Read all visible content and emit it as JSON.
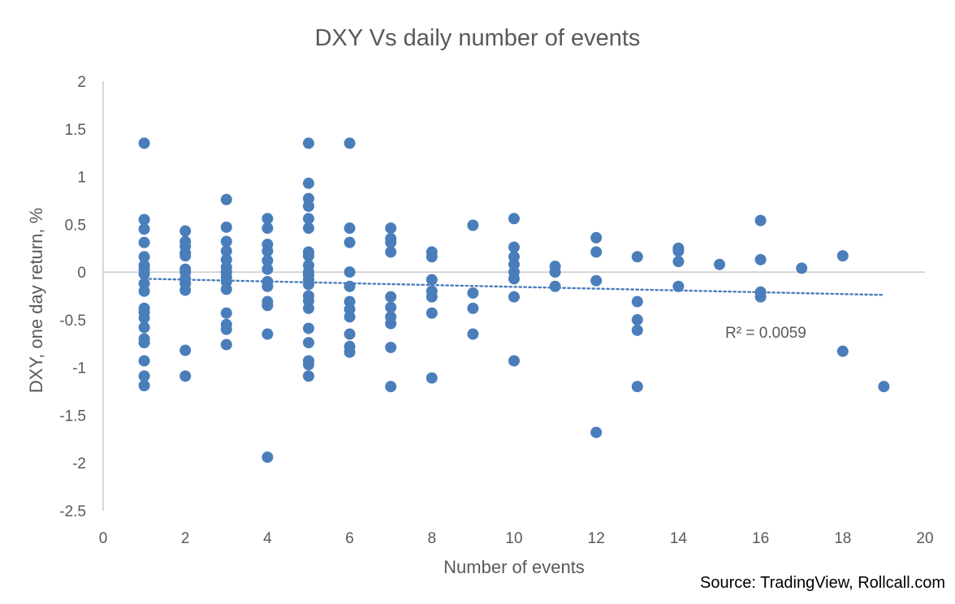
{
  "source_text": "Source: TradingView, Rollcall.com",
  "colors": {
    "marker": "#4a7ebb",
    "axis": "#bfbfbf",
    "text": "#595959"
  },
  "chart_data": {
    "type": "scatter",
    "title": "DXY Vs daily number of events",
    "xlabel": "Number of events",
    "ylabel": "DXY, one day return, %",
    "xlim": [
      0,
      20
    ],
    "ylim": [
      -2.5,
      2
    ],
    "x_ticks": [
      "0",
      "2",
      "4",
      "6",
      "8",
      "10",
      "12",
      "14",
      "16",
      "18",
      "20"
    ],
    "y_ticks": [
      "2",
      "1.5",
      "1",
      "0.5",
      "0",
      "-0.5",
      "-1",
      "-1.5",
      "-2",
      "-2.5"
    ],
    "grid": false,
    "legend": "none",
    "trendline": {
      "type": "linear",
      "style": "dotted",
      "x_start": 1,
      "y_start": -0.07,
      "x_end": 19,
      "y_end": -0.24
    },
    "r_squared_label": "R² = 0.0059",
    "points": [
      [
        1,
        1.35
      ],
      [
        1,
        0.55
      ],
      [
        1,
        0.45
      ],
      [
        1,
        0.31
      ],
      [
        1,
        0.16
      ],
      [
        1,
        0.07
      ],
      [
        1,
        0.03
      ],
      [
        1,
        -0.02
      ],
      [
        1,
        -0.12
      ],
      [
        1,
        -0.2
      ],
      [
        1,
        -0.38
      ],
      [
        1,
        -0.42
      ],
      [
        1,
        -0.48
      ],
      [
        1,
        -0.58
      ],
      [
        1,
        -0.7
      ],
      [
        1,
        -0.74
      ],
      [
        1,
        -0.93
      ],
      [
        1,
        -1.09
      ],
      [
        1,
        -1.19
      ],
      [
        2,
        0.43
      ],
      [
        2,
        0.32
      ],
      [
        2,
        0.27
      ],
      [
        2,
        0.2
      ],
      [
        2,
        0.17
      ],
      [
        2,
        0.03
      ],
      [
        2,
        0.0
      ],
      [
        2,
        -0.07
      ],
      [
        2,
        -0.12
      ],
      [
        2,
        -0.19
      ],
      [
        2,
        -0.82
      ],
      [
        2,
        -1.09
      ],
      [
        3,
        0.76
      ],
      [
        3,
        0.47
      ],
      [
        3,
        0.32
      ],
      [
        3,
        0.22
      ],
      [
        3,
        0.13
      ],
      [
        3,
        0.05
      ],
      [
        3,
        0.0
      ],
      [
        3,
        -0.05
      ],
      [
        3,
        -0.1
      ],
      [
        3,
        -0.18
      ],
      [
        3,
        -0.43
      ],
      [
        3,
        -0.55
      ],
      [
        3,
        -0.6
      ],
      [
        3,
        -0.76
      ],
      [
        4,
        0.56
      ],
      [
        4,
        0.46
      ],
      [
        4,
        0.29
      ],
      [
        4,
        0.22
      ],
      [
        4,
        0.12
      ],
      [
        4,
        0.03
      ],
      [
        4,
        -0.1
      ],
      [
        4,
        -0.15
      ],
      [
        4,
        -0.31
      ],
      [
        4,
        -0.35
      ],
      [
        4,
        -0.65
      ],
      [
        4,
        -1.94
      ],
      [
        5,
        1.35
      ],
      [
        5,
        0.93
      ],
      [
        5,
        0.77
      ],
      [
        5,
        0.69
      ],
      [
        5,
        0.56
      ],
      [
        5,
        0.46
      ],
      [
        5,
        0.21
      ],
      [
        5,
        0.17
      ],
      [
        5,
        0.07
      ],
      [
        5,
        0.0
      ],
      [
        5,
        -0.03
      ],
      [
        5,
        -0.08
      ],
      [
        5,
        -0.13
      ],
      [
        5,
        -0.25
      ],
      [
        5,
        -0.3
      ],
      [
        5,
        -0.38
      ],
      [
        5,
        -0.59
      ],
      [
        5,
        -0.74
      ],
      [
        5,
        -0.93
      ],
      [
        5,
        -0.97
      ],
      [
        5,
        -1.09
      ],
      [
        6,
        1.35
      ],
      [
        6,
        0.46
      ],
      [
        6,
        0.31
      ],
      [
        6,
        0.0
      ],
      [
        6,
        -0.15
      ],
      [
        6,
        -0.31
      ],
      [
        6,
        -0.39
      ],
      [
        6,
        -0.47
      ],
      [
        6,
        -0.65
      ],
      [
        6,
        -0.78
      ],
      [
        6,
        -0.84
      ],
      [
        7,
        0.46
      ],
      [
        7,
        0.35
      ],
      [
        7,
        0.31
      ],
      [
        7,
        0.21
      ],
      [
        7,
        -0.26
      ],
      [
        7,
        -0.37
      ],
      [
        7,
        -0.47
      ],
      [
        7,
        -0.54
      ],
      [
        7,
        -0.79
      ],
      [
        7,
        -1.2
      ],
      [
        8,
        0.21
      ],
      [
        8,
        0.16
      ],
      [
        8,
        -0.08
      ],
      [
        8,
        -0.2
      ],
      [
        8,
        -0.26
      ],
      [
        8,
        -0.43
      ],
      [
        8,
        -1.11
      ],
      [
        9,
        0.49
      ],
      [
        9,
        -0.22
      ],
      [
        9,
        -0.38
      ],
      [
        9,
        -0.65
      ],
      [
        10,
        0.56
      ],
      [
        10,
        0.26
      ],
      [
        10,
        0.16
      ],
      [
        10,
        0.08
      ],
      [
        10,
        0.0
      ],
      [
        10,
        -0.07
      ],
      [
        10,
        -0.26
      ],
      [
        10,
        -0.93
      ],
      [
        11,
        0.06
      ],
      [
        11,
        0.0
      ],
      [
        11,
        -0.15
      ],
      [
        12,
        0.36
      ],
      [
        12,
        0.21
      ],
      [
        12,
        -0.09
      ],
      [
        12,
        -1.68
      ],
      [
        13,
        0.16
      ],
      [
        13,
        -0.31
      ],
      [
        13,
        -0.5
      ],
      [
        13,
        -0.61
      ],
      [
        13,
        -1.2
      ],
      [
        14,
        0.25
      ],
      [
        14,
        0.22
      ],
      [
        14,
        0.11
      ],
      [
        14,
        -0.15
      ],
      [
        15,
        0.08
      ],
      [
        16,
        0.54
      ],
      [
        16,
        0.13
      ],
      [
        16,
        -0.21
      ],
      [
        16,
        -0.26
      ],
      [
        17,
        0.04
      ],
      [
        18,
        0.17
      ],
      [
        18,
        -0.83
      ],
      [
        19,
        -1.2
      ]
    ]
  }
}
